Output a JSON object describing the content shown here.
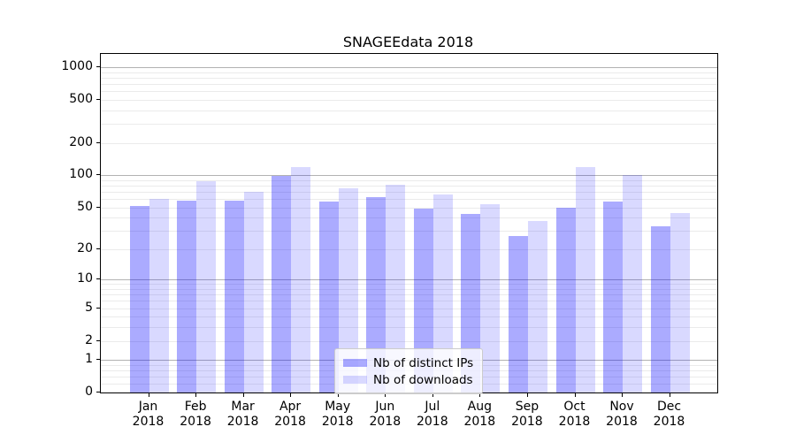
{
  "title": "SNAGEEdata 2018",
  "chart_data": {
    "type": "bar",
    "title": "SNAGEEdata 2018",
    "scale": "log10(value+1)",
    "grid": true,
    "legend_position": "lower center",
    "categories": [
      "Jan 2018",
      "Feb 2018",
      "Mar 2018",
      "Apr 2018",
      "May 2018",
      "Jun 2018",
      "Jul 2018",
      "Aug 2018",
      "Sep 2018",
      "Oct 2018",
      "Nov 2018",
      "Dec 2018"
    ],
    "y_ticks": [
      0,
      1,
      2,
      5,
      10,
      20,
      50,
      100,
      200,
      500,
      1000
    ],
    "ylim": [
      0,
      1320
    ],
    "series": [
      {
        "name": "Nb of distinct IPs",
        "color": "rgba(0,0,255,0.33)",
        "values": [
          52,
          58,
          58,
          98,
          57,
          62,
          49,
          43,
          27,
          50,
          57,
          33
        ]
      },
      {
        "name": "Nb of downloads",
        "color": "rgba(0,0,255,0.15)",
        "values": [
          60,
          88,
          70,
          120,
          75,
          82,
          66,
          54,
          37,
          120,
          100,
          44
        ]
      }
    ]
  },
  "colors": {
    "bar_distinct_ips": "rgba(0,0,255,0.33)",
    "bar_downloads": "rgba(0,0,255,0.15)",
    "grid_major": "rgba(0,0,0,0.30)",
    "grid_minor": "rgba(0,0,0,0.08)",
    "spine": "#000000",
    "legend_border": "#cccccc"
  }
}
